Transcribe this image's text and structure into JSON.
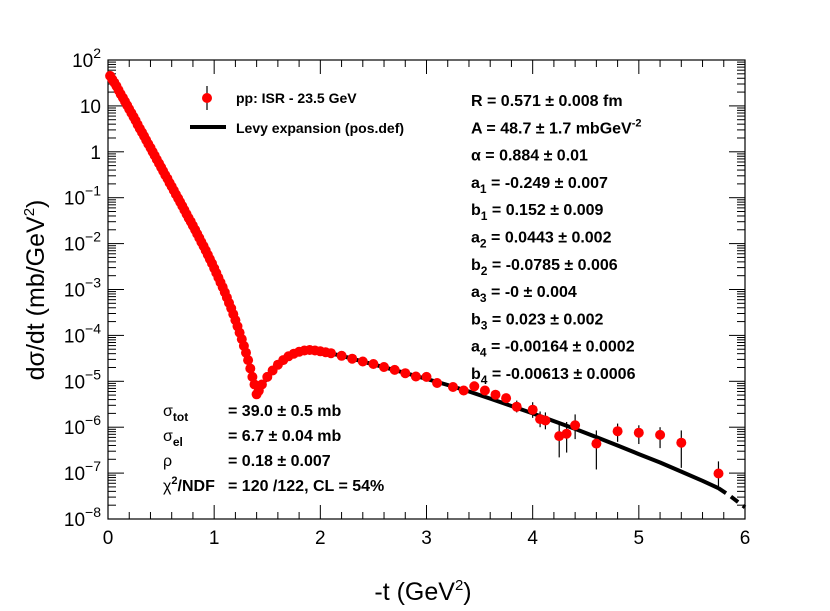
{
  "chart_data": {
    "type": "scatter",
    "xlabel": "-t (GeV",
    "xlabel_sup": "2",
    "xlabel_close": ")",
    "ylabel": "dσ/dt (mb/GeV",
    "ylabel_sup": "2",
    "ylabel_close": ")",
    "xlim": [
      0,
      6
    ],
    "ylim_log10": [
      -8,
      2
    ],
    "x_ticks": [
      {
        "v": 0,
        "label": "0"
      },
      {
        "v": 1,
        "label": "1"
      },
      {
        "v": 2,
        "label": "2"
      },
      {
        "v": 3,
        "label": "3"
      },
      {
        "v": 4,
        "label": "4"
      },
      {
        "v": 5,
        "label": "5"
      },
      {
        "v": 6,
        "label": "6"
      }
    ],
    "y_ticks": [
      {
        "exp": 2,
        "base": "10",
        "sup": "2"
      },
      {
        "exp": 1,
        "base": "10",
        "sup": ""
      },
      {
        "exp": 0,
        "base": "1",
        "sup": ""
      },
      {
        "exp": -1,
        "base": "10",
        "sup": "−1"
      },
      {
        "exp": -2,
        "base": "10",
        "sup": "−2"
      },
      {
        "exp": -3,
        "base": "10",
        "sup": "−3"
      },
      {
        "exp": -4,
        "base": "10",
        "sup": "−4"
      },
      {
        "exp": -5,
        "base": "10",
        "sup": "−5"
      },
      {
        "exp": -6,
        "base": "10",
        "sup": "−6"
      },
      {
        "exp": -7,
        "base": "10",
        "sup": "−7"
      },
      {
        "exp": -8,
        "base": "10",
        "sup": "−8"
      }
    ],
    "series": [
      {
        "name": "pp: ISR - 23.5 GeV",
        "kind": "points",
        "color": "#ff0000",
        "points": [
          [
            0.02,
            45
          ],
          [
            0.04,
            38
          ],
          [
            0.06,
            32
          ],
          [
            0.08,
            27
          ],
          [
            0.1,
            22
          ],
          [
            0.12,
            18
          ],
          [
            0.14,
            15
          ],
          [
            0.16,
            12.5
          ],
          [
            0.18,
            10.3
          ],
          [
            0.2,
            8.5
          ],
          [
            0.22,
            7.0
          ],
          [
            0.24,
            5.8
          ],
          [
            0.26,
            4.8
          ],
          [
            0.28,
            3.9
          ],
          [
            0.3,
            3.2
          ],
          [
            0.32,
            2.65
          ],
          [
            0.34,
            2.2
          ],
          [
            0.36,
            1.8
          ],
          [
            0.38,
            1.48
          ],
          [
            0.4,
            1.22
          ],
          [
            0.42,
            1.0
          ],
          [
            0.44,
            0.83
          ],
          [
            0.46,
            0.68
          ],
          [
            0.48,
            0.56
          ],
          [
            0.5,
            0.46
          ],
          [
            0.52,
            0.38
          ],
          [
            0.54,
            0.31
          ],
          [
            0.56,
            0.26
          ],
          [
            0.58,
            0.21
          ],
          [
            0.6,
            0.175
          ],
          [
            0.62,
            0.144
          ],
          [
            0.64,
            0.118
          ],
          [
            0.66,
            0.097
          ],
          [
            0.68,
            0.08
          ],
          [
            0.7,
            0.066
          ],
          [
            0.72,
            0.054
          ],
          [
            0.74,
            0.044
          ],
          [
            0.76,
            0.036
          ],
          [
            0.78,
            0.03
          ],
          [
            0.8,
            0.0245
          ],
          [
            0.82,
            0.02
          ],
          [
            0.84,
            0.0163
          ],
          [
            0.86,
            0.0133
          ],
          [
            0.88,
            0.0108
          ],
          [
            0.9,
            0.0088
          ],
          [
            0.92,
            0.0071
          ],
          [
            0.94,
            0.0057
          ],
          [
            0.96,
            0.0046
          ],
          [
            0.98,
            0.0037
          ],
          [
            1.0,
            0.0029
          ],
          [
            1.02,
            0.0023
          ],
          [
            1.04,
            0.00182
          ],
          [
            1.06,
            0.00143
          ],
          [
            1.08,
            0.00112
          ],
          [
            1.1,
            0.00087
          ],
          [
            1.12,
            0.00067
          ],
          [
            1.14,
            0.00051
          ],
          [
            1.16,
            0.00039
          ],
          [
            1.18,
            0.00029
          ],
          [
            1.2,
            0.000215
          ],
          [
            1.22,
            0.000158
          ],
          [
            1.24,
            0.000115
          ],
          [
            1.26,
            8.3e-05
          ],
          [
            1.28,
            5.9e-05
          ],
          [
            1.3,
            4.2e-05
          ],
          [
            1.32,
            2.9e-05
          ],
          [
            1.34,
            1.9e-05
          ],
          [
            1.36,
            1.25e-05
          ],
          [
            1.38,
            8.5e-06
          ],
          [
            1.4,
            5.2e-06
          ],
          [
            1.42,
            6.2e-06
          ],
          [
            1.45,
            8.5e-06
          ],
          [
            1.5,
            1.25e-05
          ],
          [
            1.55,
            1.72e-05
          ],
          [
            1.6,
            2.3e-05
          ],
          [
            1.65,
            2.9e-05
          ],
          [
            1.7,
            3.5e-05
          ],
          [
            1.75,
            4e-05
          ],
          [
            1.8,
            4.4e-05
          ],
          [
            1.85,
            4.7e-05
          ],
          [
            1.9,
            4.8e-05
          ],
          [
            1.95,
            4.7e-05
          ],
          [
            2.0,
            4.5e-05
          ],
          [
            2.05,
            4.3e-05
          ],
          [
            2.1,
            4.1e-05
          ],
          [
            2.2,
            3.6e-05
          ],
          [
            2.3,
            3.1e-05
          ],
          [
            2.4,
            2.7e-05
          ],
          [
            2.5,
            2.38e-05
          ],
          [
            2.6,
            2.05e-05
          ],
          [
            2.7,
            1.77e-05
          ],
          [
            2.8,
            1.5e-05
          ],
          [
            2.9,
            1.27e-05
          ],
          [
            3.0,
            1.25e-05
          ],
          [
            3.1,
            9.2e-06
          ],
          [
            3.25,
            7.5e-06
          ],
          [
            3.35,
            6.3e-06
          ],
          [
            3.45,
            7.8e-06
          ],
          [
            3.55,
            6.3e-06
          ],
          [
            3.65,
            5.1e-06
          ],
          [
            3.75,
            4.3e-06
          ],
          [
            3.85,
            2.8e-06
          ],
          [
            4.0,
            2.4e-06
          ],
          [
            4.07,
            1.5e-06
          ],
          [
            4.12,
            1.4e-06
          ],
          [
            4.25,
            6.4e-07
          ],
          [
            4.32,
            7.2e-07
          ],
          [
            4.4,
            1.1e-06
          ],
          [
            4.6,
            4.4e-07
          ],
          [
            4.8,
            8.2e-07
          ],
          [
            5.0,
            7.6e-07
          ],
          [
            5.2,
            6.8e-07
          ],
          [
            5.4,
            4.6e-07
          ],
          [
            5.75,
            9.8e-08
          ]
        ],
        "error_bars": [
          [
            3.55,
            5.1e-06,
            7.6e-06
          ],
          [
            3.65,
            4.1e-06,
            6.2e-06
          ],
          [
            3.75,
            3.4e-06,
            5.4e-06
          ],
          [
            3.85,
            2.1e-06,
            3.8e-06
          ],
          [
            4.0,
            1.6e-06,
            3.5e-06
          ],
          [
            4.07,
            1e-06,
            2.2e-06
          ],
          [
            4.12,
            9e-07,
            2.1e-06
          ],
          [
            4.25,
            2.2e-07,
            1.2e-06
          ],
          [
            4.32,
            2.8e-07,
            1.3e-06
          ],
          [
            4.4,
            5.5e-07,
            1.9e-06
          ],
          [
            4.6,
            1.2e-07,
            8.5e-07
          ],
          [
            4.8,
            4.8e-07,
            1.2e-06
          ],
          [
            5.0,
            4.3e-07,
            1.1e-06
          ],
          [
            5.2,
            3.5e-07,
            1e-06
          ],
          [
            5.4,
            1.3e-07,
            8.5e-07
          ],
          [
            5.75,
            4.5e-08,
            1.8e-07
          ]
        ]
      },
      {
        "name": "Levy expansion (pos.def)",
        "kind": "line",
        "color": "#000000",
        "points": [
          [
            0.0,
            55
          ],
          [
            0.1,
            21
          ],
          [
            0.2,
            8.3
          ],
          [
            0.3,
            3.1
          ],
          [
            0.4,
            1.18
          ],
          [
            0.5,
            0.45
          ],
          [
            0.6,
            0.17
          ],
          [
            0.7,
            0.064
          ],
          [
            0.8,
            0.0235
          ],
          [
            0.9,
            0.0085
          ],
          [
            1.0,
            0.0028
          ],
          [
            1.1,
            0.00085
          ],
          [
            1.2,
            0.00021
          ],
          [
            1.25,
            0.0001
          ],
          [
            1.3,
            4.2e-05
          ],
          [
            1.35,
            1.6e-05
          ],
          [
            1.38,
            8.5e-06
          ],
          [
            1.41,
            5.6e-06
          ],
          [
            1.45,
            8.2e-06
          ],
          [
            1.5,
            1.2e-05
          ],
          [
            1.6,
            2.3e-05
          ],
          [
            1.7,
            3.5e-05
          ],
          [
            1.8,
            4.4e-05
          ],
          [
            1.9,
            4.75e-05
          ],
          [
            2.0,
            4.55e-05
          ],
          [
            2.2,
            3.6e-05
          ],
          [
            2.4,
            2.68e-05
          ],
          [
            2.6,
            2.03e-05
          ],
          [
            2.8,
            1.52e-05
          ],
          [
            3.0,
            1.13e-05
          ],
          [
            3.2,
            8.3e-06
          ],
          [
            3.4,
            6e-06
          ],
          [
            3.6,
            4.2e-06
          ],
          [
            3.8,
            2.9e-06
          ],
          [
            4.0,
            2e-06
          ],
          [
            4.2,
            1.36e-06
          ],
          [
            4.4,
            9.2e-07
          ],
          [
            4.6,
            6.1e-07
          ],
          [
            4.8,
            4e-07
          ],
          [
            5.0,
            2.6e-07
          ],
          [
            5.2,
            1.7e-07
          ],
          [
            5.4,
            1.08e-07
          ],
          [
            5.6,
            6.8e-08
          ],
          [
            5.75,
            4.7e-08
          ]
        ],
        "extension_points": [
          [
            5.75,
            4.7e-08
          ],
          [
            5.85,
            3.3e-08
          ],
          [
            5.95,
            2.2e-08
          ],
          [
            6.0,
            1.8e-08
          ]
        ]
      }
    ],
    "legend": {
      "placement": "top-left",
      "entries": [
        {
          "label": "pp: ISR - 23.5 GeV",
          "marker": "point"
        },
        {
          "label": "Levy expansion (pos.def)",
          "marker": "line"
        }
      ]
    },
    "parameters": [
      {
        "sym": "R",
        "sub": "",
        "text": " = 0.571 ± 0.008 fm",
        "sup": ""
      },
      {
        "sym": "A",
        "sub": "",
        "text": " = 48.7  ± 1.7 mbGeV",
        "sup": "-2"
      },
      {
        "sym": "α",
        "sub": "",
        "text": "  = 0.884  ± 0.01",
        "sup": ""
      },
      {
        "sym": "a",
        "sub": "1",
        "text": " = -0.249 ± 0.007",
        "sup": ""
      },
      {
        "sym": "b",
        "sub": "1",
        "text": " = 0.152  ± 0.009",
        "sup": ""
      },
      {
        "sym": "a",
        "sub": "2",
        "text": " = 0.0443 ± 0.002",
        "sup": ""
      },
      {
        "sym": "b",
        "sub": "2",
        "text": " = -0.0785 ± 0.006",
        "sup": ""
      },
      {
        "sym": "a",
        "sub": "3",
        "text": " = -0  ± 0.004",
        "sup": ""
      },
      {
        "sym": "b",
        "sub": "3",
        "text": " = 0.023  ± 0.002",
        "sup": ""
      },
      {
        "sym": "a",
        "sub": "4",
        "text": " = -0.00164 ± 0.0002",
        "sup": ""
      },
      {
        "sym": "b",
        "sub": "4",
        "text": " = -0.00613 ± 0.0006",
        "sup": ""
      }
    ],
    "stats": [
      {
        "sym": "σ",
        "sub": "tot",
        "text": "= 39.0  ± 0.5 mb"
      },
      {
        "sym": "σ",
        "sub": "el",
        "text": "= 6.7  ± 0.04 mb"
      },
      {
        "sym": "ρ",
        "sub": "",
        "text": "= 0.18  ± 0.007"
      },
      {
        "sym": "χ",
        "sub": "",
        "sup": "2",
        "suffix": "/NDF",
        "text": "= 120 /122,  CL = 54%"
      }
    ]
  }
}
